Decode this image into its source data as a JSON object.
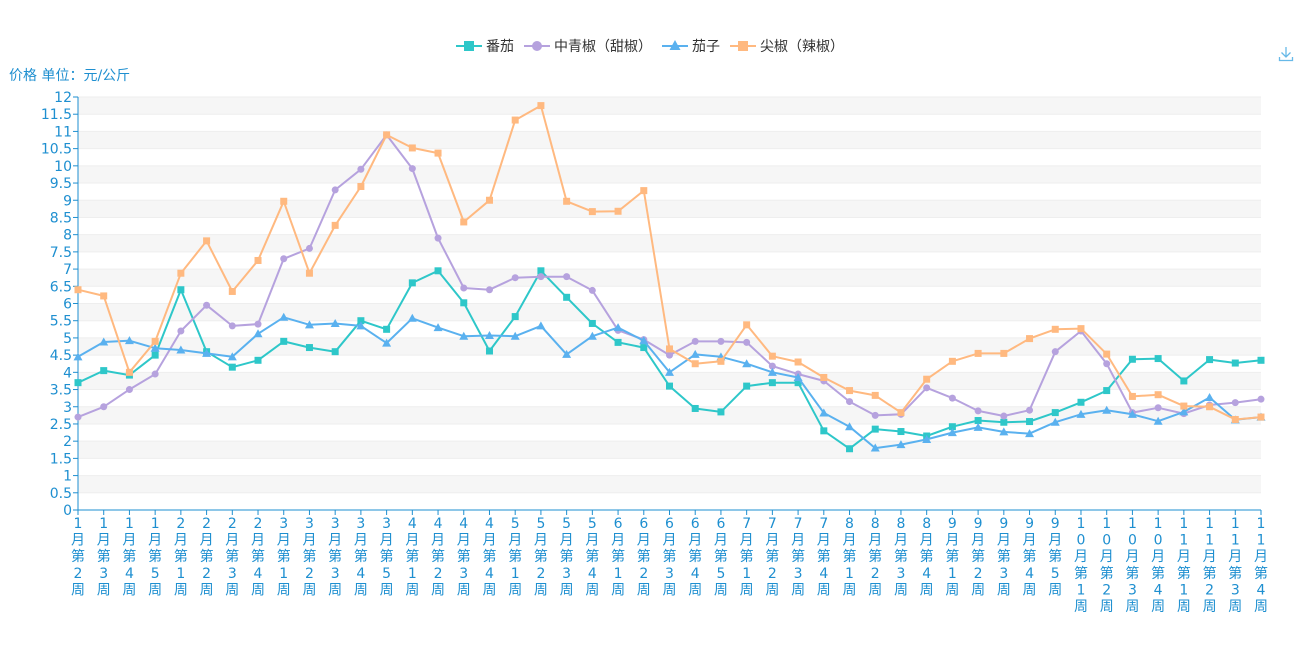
{
  "chart_data": {
    "type": "line",
    "ylabel": "价格 单位：元/公斤",
    "ylim": [
      0,
      12
    ],
    "ytick_step": 0.5,
    "grid": true,
    "legend_position": "top",
    "categories": [
      "1月第2周",
      "1月第3周",
      "1月第4周",
      "1月第5周",
      "2月第1周",
      "2月第2周",
      "2月第3周",
      "2月第4周",
      "3月第1周",
      "3月第2周",
      "3月第3周",
      "3月第4周",
      "3月第5周",
      "4月第1周",
      "4月第2周",
      "4月第3周",
      "4月第4周",
      "5月第1周",
      "5月第2周",
      "5月第3周",
      "5月第4周",
      "6月第1周",
      "6月第2周",
      "6月第3周",
      "6月第4周",
      "6月第5周",
      "7月第1周",
      "7月第2周",
      "7月第3周",
      "7月第4周",
      "8月第1周",
      "8月第2周",
      "8月第3周",
      "8月第4周",
      "9月第1周",
      "9月第2周",
      "9月第3周",
      "9月第4周",
      "9月第5周",
      "10月第1周",
      "10月第2周",
      "10月第3周",
      "10月第4周",
      "11月第1周",
      "11月第2周",
      "11月第3周",
      "11月第4周"
    ],
    "series": [
      {
        "name": "番茄",
        "color": "#2ec7c9",
        "marker": "square",
        "values": [
          3.7,
          4.05,
          3.92,
          4.5,
          6.4,
          4.6,
          4.15,
          4.35,
          4.9,
          4.72,
          4.6,
          5.5,
          5.25,
          6.6,
          6.95,
          6.02,
          4.62,
          5.62,
          6.95,
          6.18,
          5.42,
          4.87,
          4.72,
          3.6,
          2.95,
          2.85,
          3.6,
          3.7,
          3.7,
          2.3,
          1.78,
          2.35,
          2.28,
          2.15,
          2.42,
          2.6,
          2.55,
          2.57,
          2.83,
          3.13,
          3.47,
          4.38,
          4.4,
          3.75,
          4.37,
          4.27,
          4.35
        ]
      },
      {
        "name": "中青椒（甜椒）",
        "color": "#b6a2de",
        "marker": "circle",
        "values": [
          2.7,
          3.0,
          3.5,
          3.95,
          5.2,
          5.95,
          5.35,
          5.4,
          7.3,
          7.6,
          9.3,
          9.9,
          10.9,
          9.92,
          7.9,
          6.45,
          6.4,
          6.75,
          6.78,
          6.78,
          6.38,
          5.22,
          4.95,
          4.5,
          4.9,
          4.9,
          4.87,
          4.18,
          3.95,
          3.75,
          3.15,
          2.75,
          2.78,
          3.55,
          3.25,
          2.88,
          2.73,
          2.9,
          4.6,
          5.2,
          4.25,
          2.83,
          2.97,
          2.8,
          3.05,
          3.12,
          3.22
        ]
      },
      {
        "name": "茄子",
        "color": "#5ab1ef",
        "marker": "triangle",
        "values": [
          4.45,
          4.88,
          4.92,
          4.7,
          4.65,
          4.55,
          4.45,
          5.12,
          5.6,
          5.38,
          5.42,
          5.35,
          4.85,
          5.57,
          5.3,
          5.05,
          5.07,
          5.05,
          5.35,
          4.52,
          5.05,
          5.3,
          4.92,
          4.0,
          4.52,
          4.45,
          4.25,
          4.0,
          3.85,
          2.82,
          2.42,
          1.8,
          1.9,
          2.05,
          2.25,
          2.4,
          2.27,
          2.22,
          2.55,
          2.78,
          2.9,
          2.78,
          2.58,
          2.85,
          3.27,
          2.62,
          2.7
        ]
      },
      {
        "name": "尖椒（辣椒）",
        "color": "#ffb980",
        "marker": "square",
        "values": [
          6.4,
          6.22,
          4.0,
          4.9,
          6.88,
          7.82,
          6.35,
          7.25,
          8.97,
          6.88,
          8.27,
          9.4,
          10.9,
          10.52,
          10.37,
          8.37,
          9.0,
          11.33,
          11.75,
          8.97,
          8.67,
          8.68,
          9.28,
          4.68,
          4.25,
          4.32,
          5.38,
          4.47,
          4.3,
          3.85,
          3.47,
          3.33,
          2.83,
          3.8,
          4.32,
          4.55,
          4.55,
          4.98,
          5.25,
          5.27,
          4.53,
          3.3,
          3.35,
          3.02,
          3.0,
          2.63,
          2.7
        ]
      }
    ]
  },
  "toolbar": {
    "download_icon": "download-icon"
  }
}
